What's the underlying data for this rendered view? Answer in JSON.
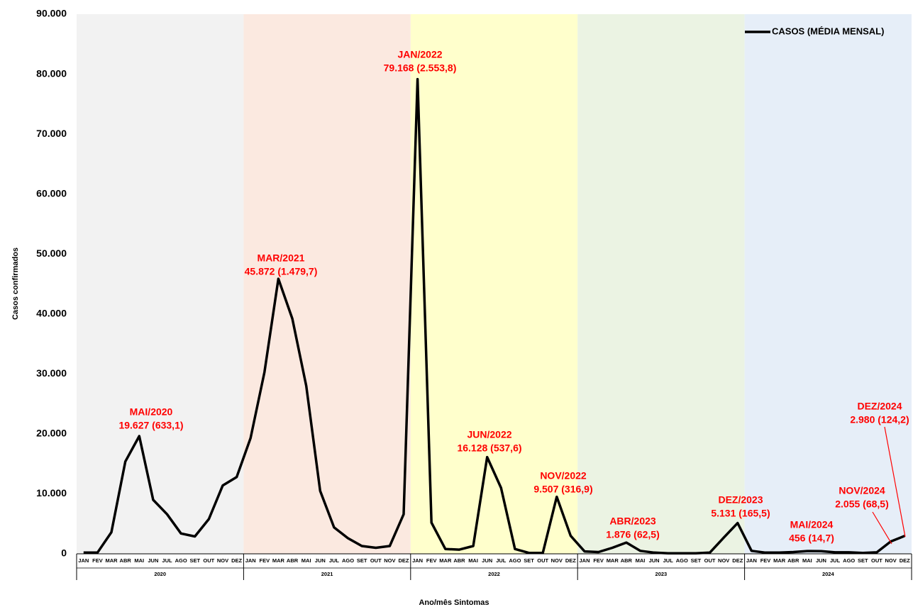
{
  "chart_data": {
    "type": "line",
    "x_label": "Ano/mês Sintomas",
    "y_label": "Casos confirmados",
    "categories": [
      "JAN",
      "FEV",
      "MAR",
      "ABR",
      "MAI",
      "JUN",
      "JUL",
      "AGO",
      "SET",
      "OUT",
      "NOV",
      "DEZ",
      "JAN",
      "FEV",
      "MAR",
      "ABR",
      "MAI",
      "JUN",
      "JUL",
      "AGO",
      "SET",
      "OUT",
      "NOV",
      "DEZ",
      "JAN",
      "FEV",
      "MAR",
      "ABR",
      "MAI",
      "JUN",
      "JUL",
      "AGO",
      "SET",
      "OUT",
      "NOV",
      "DEZ",
      "JAN",
      "FEV",
      "MAR",
      "ABR",
      "MAI",
      "JUN",
      "JUL",
      "AGO",
      "SET",
      "OUT",
      "NOV",
      "DEZ",
      "JAN",
      "FEV",
      "MAR",
      "ABR",
      "MAI",
      "JUN",
      "JUL",
      "AGO",
      "SET",
      "OUT",
      "NOV",
      "DEZ"
    ],
    "years": [
      "2020",
      "2021",
      "2022",
      "2023",
      "2024"
    ],
    "band_colors": [
      "#f2f2f2",
      "#fbe9e0",
      "#ffffcc",
      "#ebf3e3",
      "#e6eef8"
    ],
    "series": [
      {
        "name": "CASOS (MÉDIA MENSAL)",
        "color": "#000000",
        "values": [
          200,
          200,
          3600,
          15400,
          19627,
          9000,
          6600,
          3400,
          2900,
          5800,
          11400,
          12800,
          19300,
          30300,
          45872,
          39200,
          28000,
          10500,
          4400,
          2600,
          1300,
          1000,
          1300,
          6600,
          79168,
          5200,
          800,
          700,
          1300,
          16128,
          11000,
          800,
          150,
          150,
          9507,
          3000,
          400,
          300,
          1000,
          1876,
          500,
          200,
          100,
          100,
          100,
          200,
          2700,
          5131,
          500,
          200,
          200,
          300,
          456,
          450,
          250,
          250,
          150,
          250,
          2055,
          2980
        ]
      }
    ],
    "ylim": [
      0,
      90000
    ],
    "yticks": [
      0,
      {
        "value": 10000,
        "label": "10.000"
      },
      {
        "value": 20000,
        "label": "20.000"
      },
      {
        "value": 30000,
        "label": "30.000"
      },
      {
        "value": 40000,
        "label": "40.000"
      },
      {
        "value": 50000,
        "label": "50.000"
      },
      {
        "value": 60000,
        "label": "60.000"
      },
      {
        "value": 70000,
        "label": "70.000"
      },
      {
        "value": 80000,
        "label": "80.000"
      },
      {
        "value": 90000,
        "label": "90.000"
      }
    ],
    "legend": "top-right",
    "annotations": [
      {
        "label": "MAI/2020",
        "value_label": "19.627 (633,1)"
      },
      {
        "label": "MAR/2021",
        "value_label": "45.872 (1.479,7)"
      },
      {
        "label": "JAN/2022",
        "value_label": "79.168 (2.553,8)"
      },
      {
        "label": "JUN/2022",
        "value_label": "16.128 (537,6)"
      },
      {
        "label": "NOV/2022",
        "value_label": "9.507 (316,9)"
      },
      {
        "label": "ABR/2023",
        "value_label": "1.876 (62,5)"
      },
      {
        "label": "DEZ/2023",
        "value_label": "5.131 (165,5)"
      },
      {
        "label": "MAI/2024",
        "value_label": "456 (14,7)"
      },
      {
        "label": "NOV/2024",
        "value_label": "2.055 (68,5)"
      },
      {
        "label": "DEZ/2024",
        "value_label": "2.980 (124,2)"
      }
    ],
    "annotation_color": "#ff0000"
  }
}
